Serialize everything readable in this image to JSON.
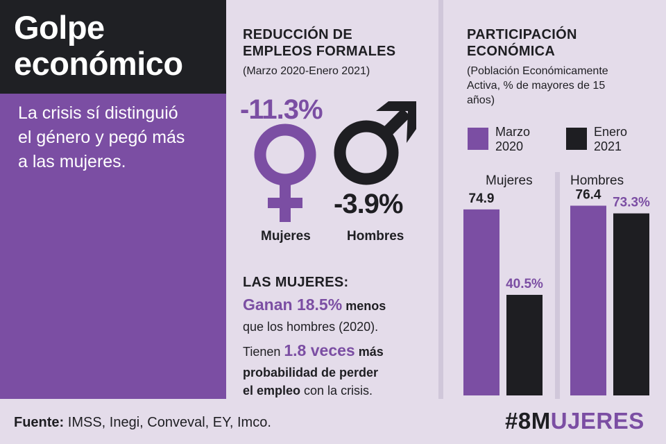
{
  "left": {
    "title_line1": "Golpe",
    "title_line2": "económico",
    "subtitle_line1": "La crisis sí distinguió",
    "subtitle_line2": "el género y pegó más",
    "subtitle_line3": "a las mujeres."
  },
  "reduction": {
    "title_line1": "REDUCCIÓN DE",
    "title_line2": "EMPLEOS FORMALES",
    "period": "(Marzo 2020-Enero 2021)",
    "women_value": "-11.3%",
    "men_value": "-3.9%",
    "women_label": "Mujeres",
    "men_label": "Hombres",
    "women_symbol": "female-symbol-icon",
    "men_symbol": "male-symbol-icon"
  },
  "women_facts": {
    "heading": "LAS MUJERES:",
    "fact1_a": "Ganan 18.5%",
    "fact1_b": " menos",
    "fact1_c": "que los hombres (2020).",
    "fact2_a": "Tienen ",
    "fact2_b": "1.8 veces",
    "fact2_c": " más",
    "fact2_d": "probabilidad de perder",
    "fact2_e": "el empleo",
    "fact2_f": " con la crisis."
  },
  "participation": {
    "title_line1": "PARTICIPACIÓN",
    "title_line2": "ECONÓMICA",
    "sub_line1": "(Población Económicamente",
    "sub_line2": "Activa, % de mayores de 15",
    "sub_line3": "años)",
    "legend_march_line1": "Marzo",
    "legend_march_line2": "2020",
    "legend_jan_line1": "Enero",
    "legend_jan_line2": "2021"
  },
  "chart_data": {
    "type": "bar",
    "categories": [
      "Mujeres",
      "Hombres"
    ],
    "series": [
      {
        "name": "Marzo 2020",
        "values": [
          74.9,
          76.4
        ],
        "labels": [
          "74.9",
          "76.4"
        ],
        "color": "#7b4ea3"
      },
      {
        "name": "Enero 2021",
        "values": [
          40.5,
          73.3
        ],
        "labels": [
          "40.5%",
          "73.3%"
        ],
        "color": "#1e1e22"
      }
    ],
    "ylim": [
      0,
      100
    ]
  },
  "footer": {
    "source_label": "Fuente:",
    "source_text": " IMSS, Inegi, Conveval, EY, Imco.",
    "hashtag_part1": "#8M",
    "hashtag_part2": "UJERES"
  },
  "colors": {
    "purple": "#7b4ea3",
    "dark": "#1e1e22",
    "background": "#e4dcea"
  }
}
